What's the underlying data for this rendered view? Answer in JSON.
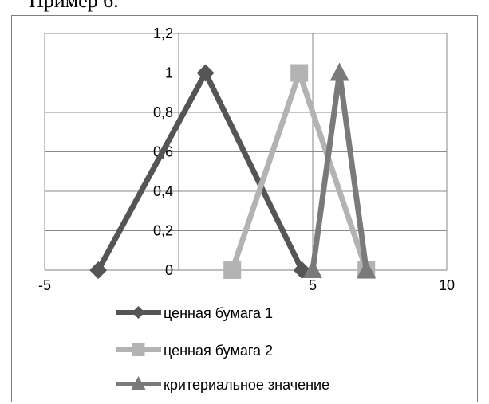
{
  "heading": "Пример 6.",
  "chart_data": {
    "type": "scatter",
    "title": "",
    "xlabel": "",
    "ylabel": "",
    "xlim": [
      -5,
      10
    ],
    "ylim": [
      0,
      1.2
    ],
    "x_ticks": [
      -5,
      0,
      5,
      10
    ],
    "y_ticks": [
      0,
      0.2,
      0.4,
      0.6,
      0.8,
      1,
      1.2
    ],
    "x_tick_labels": [
      "-5",
      "",
      "5",
      "10"
    ],
    "y_tick_labels": [
      "0",
      "0,2",
      "0,4",
      "0,6",
      "0,8",
      "1",
      "1,2"
    ],
    "grid": true,
    "legend_position": "bottom",
    "series": [
      {
        "name": "ценная бумага 1",
        "marker": "diamond",
        "color": "#555555",
        "points": [
          [
            -3,
            0
          ],
          [
            1,
            1
          ],
          [
            4.6,
            0
          ]
        ]
      },
      {
        "name": "ценная бумага 2",
        "marker": "square",
        "color": "#b3b3b3",
        "points": [
          [
            2,
            0
          ],
          [
            4.5,
            1
          ],
          [
            7,
            0
          ]
        ]
      },
      {
        "name": "критериальное значение",
        "marker": "triangle",
        "color": "#7a7a7a",
        "points": [
          [
            5,
            0
          ],
          [
            6,
            1
          ],
          [
            7,
            0
          ]
        ]
      }
    ]
  }
}
